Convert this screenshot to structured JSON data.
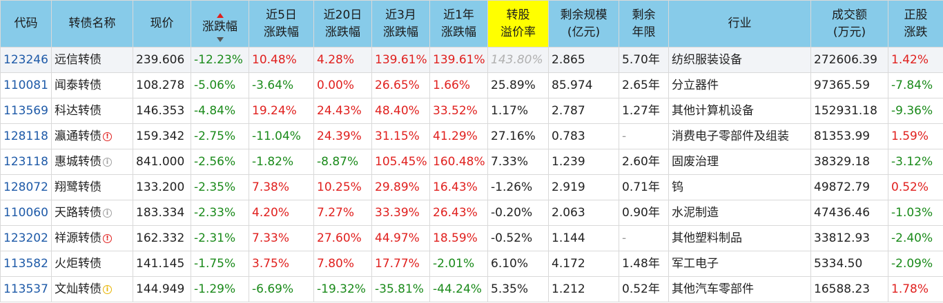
{
  "headers": {
    "code": "代码",
    "name": "转债名称",
    "price": "现价",
    "change": "涨跌幅",
    "chg5d_1": "近5日",
    "chg5d_2": "涨跌幅",
    "chg20d_1": "近20日",
    "chg20d_2": "涨跌幅",
    "chg3m_1": "近3月",
    "chg3m_2": "涨跌幅",
    "chg1y_1": "近1年",
    "chg1y_2": "涨跌幅",
    "premium_1": "转股",
    "premium_2": "溢价率",
    "scale_1": "剩余规模",
    "scale_2": "(亿元)",
    "years_1": "剩余",
    "years_2": "年限",
    "industry": "行业",
    "turnover_1": "成交额",
    "turnover_2": "(万元)",
    "stock_1": "正股",
    "stock_2": "涨跌"
  },
  "colors": {
    "header_bg": "#87cbe9",
    "highlight": "#ffff00",
    "up": "#e0201e",
    "down": "#1a8a1a",
    "code": "#1e5aa8"
  },
  "rows": [
    {
      "code": "123246",
      "name": "远信转债",
      "badge": "",
      "price": "239.606",
      "change": "-12.23%",
      "chg5d": "10.48%",
      "chg20d": "4.28%",
      "chg3m": "139.61%",
      "chg1y": "139.61%",
      "premium": "143.80%",
      "scale": "2.865",
      "years": "5.70年",
      "industry": "纺织服装设备",
      "turnover": "272606.39",
      "stock": "1.42%"
    },
    {
      "code": "110081",
      "name": "闻泰转债",
      "badge": "",
      "price": "108.278",
      "change": "-5.06%",
      "chg5d": "-3.64%",
      "chg20d": "0.00%",
      "chg3m": "26.65%",
      "chg1y": "1.66%",
      "premium": "25.89%",
      "scale": "85.974",
      "years": "2.65年",
      "industry": "分立器件",
      "turnover": "97365.59",
      "stock": "-7.84%"
    },
    {
      "code": "113569",
      "name": "科达转债",
      "badge": "",
      "price": "146.353",
      "change": "-4.84%",
      "chg5d": "19.24%",
      "chg20d": "24.43%",
      "chg3m": "48.40%",
      "chg1y": "33.52%",
      "premium": "1.17%",
      "scale": "2.787",
      "years": "1.27年",
      "industry": "其他计算机设备",
      "turnover": "152931.18",
      "stock": "-9.36%"
    },
    {
      "code": "128118",
      "name": "瀛通转债",
      "badge": "red",
      "price": "159.342",
      "change": "-2.75%",
      "chg5d": "-11.04%",
      "chg20d": "24.39%",
      "chg3m": "31.15%",
      "chg1y": "41.29%",
      "premium": "27.16%",
      "scale": "0.783",
      "years": "-",
      "industry": "消费电子零部件及组装",
      "turnover": "81353.99",
      "stock": "1.59%"
    },
    {
      "code": "123118",
      "name": "惠城转债",
      "badge": "gray",
      "price": "841.000",
      "change": "-2.56%",
      "chg5d": "-1.82%",
      "chg20d": "-8.87%",
      "chg3m": "105.45%",
      "chg1y": "160.48%",
      "premium": "7.33%",
      "scale": "1.239",
      "years": "2.60年",
      "industry": "固废治理",
      "turnover": "38329.18",
      "stock": "-3.12%"
    },
    {
      "code": "128072",
      "name": "翔鹭转债",
      "badge": "",
      "price": "133.200",
      "change": "-2.35%",
      "chg5d": "7.38%",
      "chg20d": "10.25%",
      "chg3m": "29.89%",
      "chg1y": "16.43%",
      "premium": "-1.26%",
      "scale": "2.919",
      "years": "0.71年",
      "industry": "钨",
      "turnover": "49872.79",
      "stock": "0.52%"
    },
    {
      "code": "110060",
      "name": "天路转债",
      "badge": "gray",
      "price": "183.334",
      "change": "-2.33%",
      "chg5d": "4.20%",
      "chg20d": "7.27%",
      "chg3m": "33.39%",
      "chg1y": "26.43%",
      "premium": "-0.20%",
      "scale": "2.063",
      "years": "0.90年",
      "industry": "水泥制造",
      "turnover": "47436.46",
      "stock": "-1.03%"
    },
    {
      "code": "123202",
      "name": "祥源转债",
      "badge": "red",
      "price": "162.332",
      "change": "-2.31%",
      "chg5d": "7.33%",
      "chg20d": "27.60%",
      "chg3m": "44.97%",
      "chg1y": "18.59%",
      "premium": "-0.52%",
      "scale": "1.144",
      "years": "-",
      "industry": "其他塑料制品",
      "turnover": "33812.93",
      "stock": "-2.40%"
    },
    {
      "code": "113582",
      "name": "火炬转债",
      "badge": "",
      "price": "141.145",
      "change": "-1.75%",
      "chg5d": "3.75%",
      "chg20d": "7.80%",
      "chg3m": "17.77%",
      "chg1y": "-2.01%",
      "premium": "6.10%",
      "scale": "4.172",
      "years": "1.48年",
      "industry": "军工电子",
      "turnover": "5334.50",
      "stock": "-2.09%"
    },
    {
      "code": "113537",
      "name": "文灿转债",
      "badge": "yellow",
      "price": "144.949",
      "change": "-1.29%",
      "chg5d": "-6.69%",
      "chg20d": "-19.32%",
      "chg3m": "-35.81%",
      "chg1y": "-44.24%",
      "premium": "5.35%",
      "scale": "1.212",
      "years": "0.52年",
      "industry": "其他汽车零部件",
      "turnover": "16588.23",
      "stock": "1.78%"
    }
  ]
}
